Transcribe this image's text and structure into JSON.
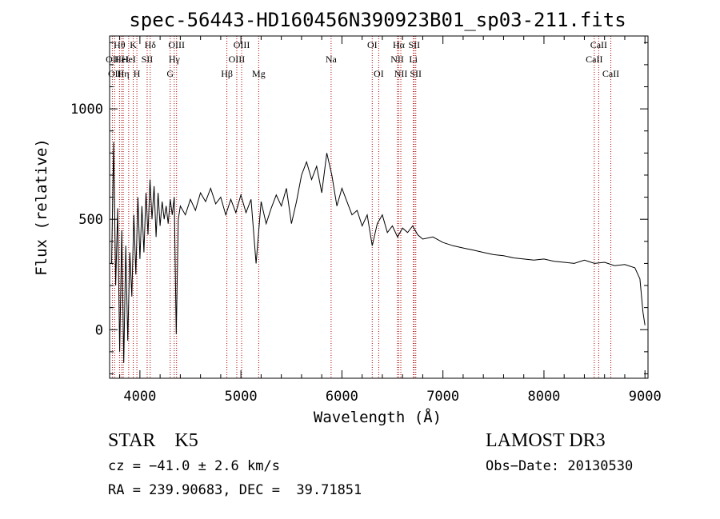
{
  "chart_data": {
    "type": "line",
    "title": "spec-56443-HD160456N390923B01_sp03-211.fits",
    "xlabel": "Wavelength (Å)",
    "ylabel": "Flux (relative)",
    "xlim": [
      3700,
      9030
    ],
    "ylim": [
      -220,
      1330
    ],
    "xticks": [
      4000,
      5000,
      6000,
      7000,
      8000,
      9000
    ],
    "yticks": [
      0,
      500,
      1000
    ],
    "grid": false,
    "line_color": "#000000",
    "marker_color": "#aa0000",
    "series": [
      {
        "x": [
          3720,
          3740,
          3760,
          3780,
          3800,
          3820,
          3840,
          3860,
          3880,
          3900,
          3920,
          3940,
          3960,
          3980,
          4000,
          4020,
          4040,
          4060,
          4080,
          4100,
          4120,
          4140,
          4160,
          4180,
          4200,
          4220,
          4240,
          4260,
          4280,
          4300,
          4320,
          4340,
          4360,
          4380,
          4400,
          4450,
          4500,
          4550,
          4600,
          4650,
          4700,
          4750,
          4800,
          4850,
          4900,
          4950,
          5000,
          5050,
          5100,
          5150,
          5200,
          5250,
          5300,
          5350,
          5400,
          5450,
          5500,
          5550,
          5600,
          5650,
          5700,
          5750,
          5800,
          5850,
          5900,
          5950,
          6000,
          6050,
          6100,
          6150,
          6200,
          6250,
          6300,
          6350,
          6400,
          6450,
          6500,
          6550,
          6600,
          6650,
          6700,
          6750,
          6800,
          6900,
          7000,
          7100,
          7200,
          7300,
          7400,
          7500,
          7600,
          7700,
          7800,
          7900,
          8000,
          8100,
          8200,
          8300,
          8400,
          8500,
          8600,
          8700,
          8800,
          8900,
          8950,
          8980,
          9000
        ],
        "y": [
          300,
          850,
          200,
          550,
          -100,
          450,
          -150,
          380,
          -50,
          350,
          150,
          520,
          250,
          600,
          320,
          560,
          350,
          620,
          430,
          680,
          500,
          650,
          420,
          620,
          470,
          580,
          500,
          560,
          480,
          590,
          520,
          600,
          -20,
          500,
          560,
          520,
          590,
          540,
          620,
          580,
          640,
          570,
          600,
          520,
          590,
          530,
          610,
          530,
          590,
          300,
          580,
          480,
          550,
          610,
          560,
          640,
          480,
          580,
          700,
          760,
          680,
          740,
          620,
          800,
          700,
          560,
          640,
          580,
          520,
          540,
          470,
          520,
          380,
          480,
          520,
          440,
          470,
          420,
          460,
          440,
          470,
          430,
          410,
          420,
          395,
          380,
          370,
          360,
          350,
          340,
          335,
          325,
          320,
          315,
          320,
          310,
          305,
          300,
          315,
          300,
          305,
          290,
          295,
          280,
          230,
          80,
          20
        ]
      }
    ],
    "lines": [
      {
        "wl": 3727,
        "labels": [
          "OII"
        ],
        "rows": [
          1
        ]
      },
      {
        "wl": 3750,
        "labels": [
          "OII"
        ],
        "rows": [
          2
        ]
      },
      {
        "wl": 3798,
        "labels": [
          "Hθ"
        ],
        "rows": [
          0
        ]
      },
      {
        "wl": 3820,
        "labels": [
          "HeI"
        ],
        "rows": [
          1
        ]
      },
      {
        "wl": 3835,
        "labels": [
          "Hη"
        ],
        "rows": [
          2
        ]
      },
      {
        "wl": 3889,
        "labels": [
          "HeI"
        ],
        "rows": [
          1
        ]
      },
      {
        "wl": 3934,
        "labels": [
          "K"
        ],
        "rows": [
          0
        ]
      },
      {
        "wl": 3970,
        "labels": [
          "H"
        ],
        "rows": [
          2
        ]
      },
      {
        "wl": 4072,
        "labels": [
          "SII"
        ],
        "rows": [
          1
        ]
      },
      {
        "wl": 4102,
        "labels": [
          "Hδ"
        ],
        "rows": [
          0
        ]
      },
      {
        "wl": 4300,
        "labels": [
          "G"
        ],
        "rows": [
          2
        ]
      },
      {
        "wl": 4340,
        "labels": [
          "Hγ"
        ],
        "rows": [
          1
        ]
      },
      {
        "wl": 4363,
        "labels": [
          "OIII"
        ],
        "rows": [
          0
        ]
      },
      {
        "wl": 4861,
        "labels": [
          "Hβ"
        ],
        "rows": [
          2
        ]
      },
      {
        "wl": 4959,
        "labels": [
          "OIII"
        ],
        "rows": [
          1
        ]
      },
      {
        "wl": 5007,
        "labels": [
          "OIII"
        ],
        "rows": [
          0
        ]
      },
      {
        "wl": 5176,
        "labels": [
          "Mg"
        ],
        "rows": [
          2
        ]
      },
      {
        "wl": 5893,
        "labels": [
          "Na"
        ],
        "rows": [
          1
        ]
      },
      {
        "wl": 6300,
        "labels": [
          "OI"
        ],
        "rows": [
          0
        ]
      },
      {
        "wl": 6364,
        "labels": [
          "OI"
        ],
        "rows": [
          2
        ]
      },
      {
        "wl": 6548,
        "labels": [
          "NII"
        ],
        "rows": [
          1
        ]
      },
      {
        "wl": 6563,
        "labels": [
          "Hα"
        ],
        "rows": [
          0
        ]
      },
      {
        "wl": 6583,
        "labels": [
          "NII"
        ],
        "rows": [
          2
        ]
      },
      {
        "wl": 6707,
        "labels": [
          "Li"
        ],
        "rows": [
          1
        ]
      },
      {
        "wl": 6716,
        "labels": [
          "SII"
        ],
        "rows": [
          0
        ]
      },
      {
        "wl": 6731,
        "labels": [
          "SII"
        ],
        "rows": [
          2
        ]
      },
      {
        "wl": 8498,
        "labels": [
          "CaII"
        ],
        "rows": [
          1
        ]
      },
      {
        "wl": 8542,
        "labels": [
          "CaII"
        ],
        "rows": [
          0
        ]
      },
      {
        "wl": 8662,
        "labels": [
          "CaII"
        ],
        "rows": [
          2
        ]
      }
    ]
  },
  "info": {
    "class_label": "STAR    K5",
    "survey": "LAMOST DR3",
    "cz": "cz = −41.0 ± 2.6 km/s",
    "obs_date": "Obs−Date: 20130530",
    "radec": "RA = 239.90683, DEC =  39.71851"
  }
}
